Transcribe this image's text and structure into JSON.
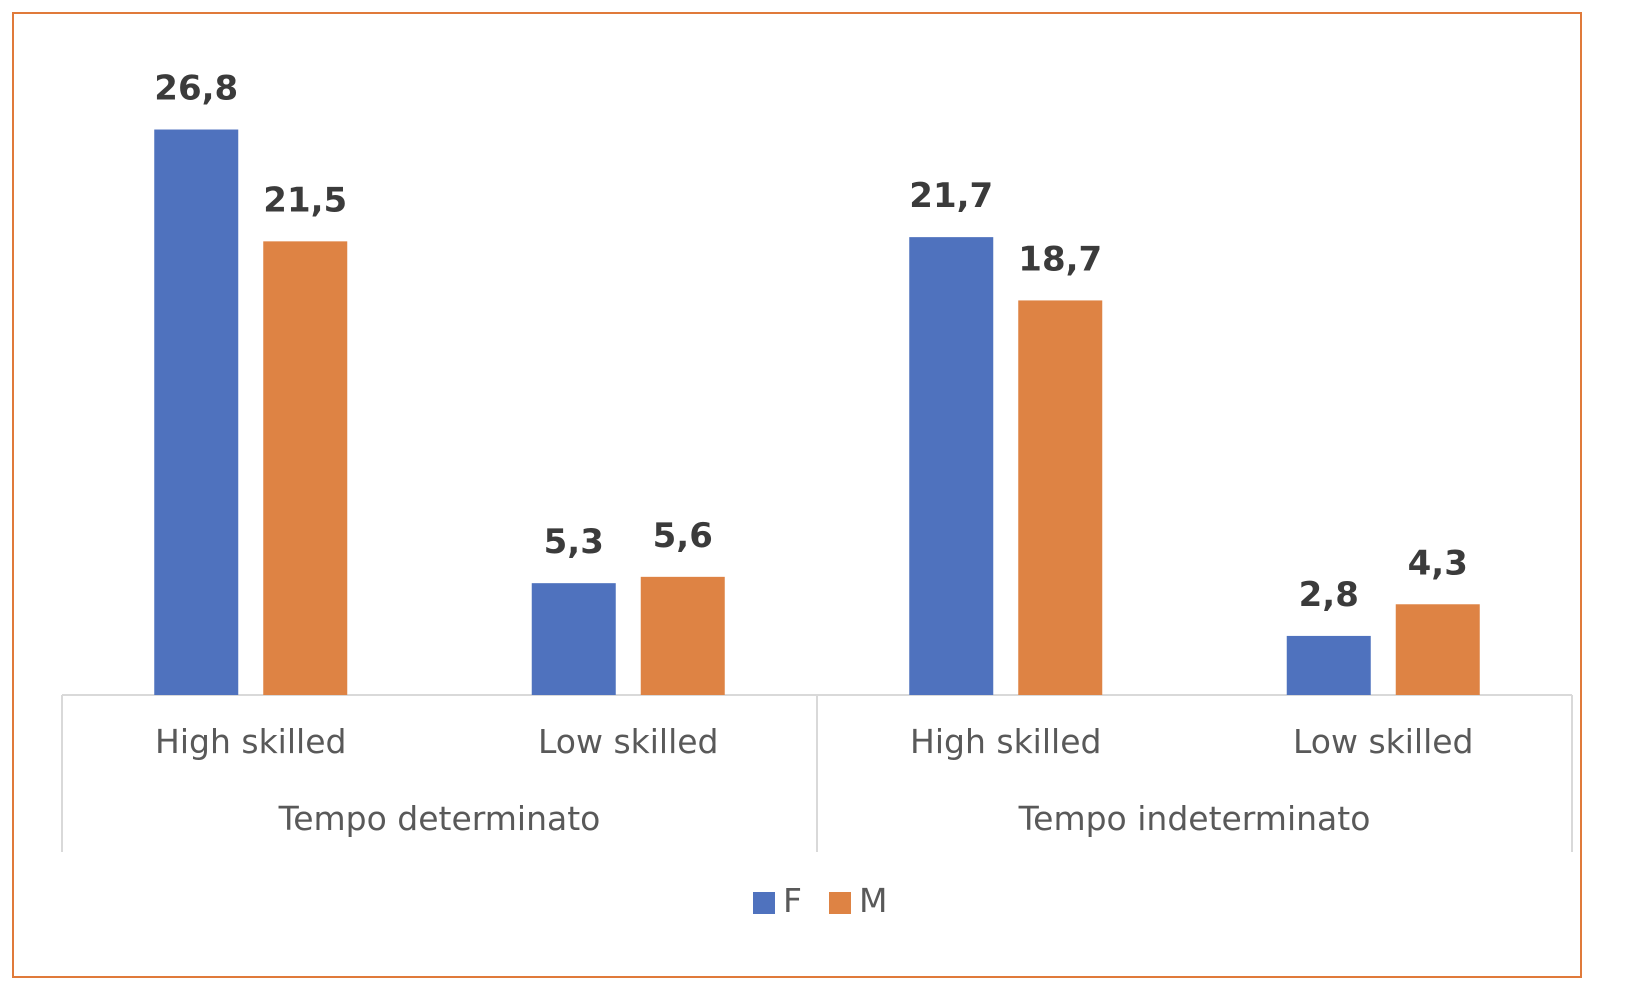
{
  "chart_data": {
    "type": "bar",
    "groups": [
      {
        "label": "Tempo determinato",
        "categories": [
          "High skilled",
          "Low skilled"
        ]
      },
      {
        "label": "Tempo indeterminato",
        "categories": [
          "High skilled",
          "Low skilled"
        ]
      }
    ],
    "series": [
      {
        "name": "F",
        "color": "#4F72BE",
        "values": [
          26.8,
          5.3,
          21.7,
          2.8
        ],
        "labels": [
          "26,8",
          "5,3",
          "21,7",
          "2,8"
        ]
      },
      {
        "name": "M",
        "color": "#DE8344",
        "values": [
          21.5,
          5.6,
          18.7,
          4.3
        ],
        "labels": [
          "21,5",
          "5,6",
          "18,7",
          "4,3"
        ]
      }
    ],
    "ylim": [
      0,
      30
    ],
    "grid": false,
    "legend_position": "bottom-center",
    "border_color": "#E07A3A",
    "axis_color": "#D9D9D9"
  }
}
